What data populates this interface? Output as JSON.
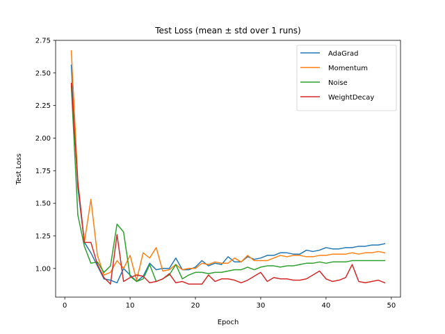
{
  "chart_data": {
    "type": "line",
    "title": "Test Loss (mean ± std over 1 runs)",
    "xlabel": "Epoch",
    "ylabel": "Test Loss",
    "xlim": [
      -1.4,
      51.4
    ],
    "ylim": [
      0.78,
      2.75
    ],
    "xticks": [
      0,
      10,
      20,
      30,
      40,
      50
    ],
    "yticks": [
      1.0,
      1.25,
      1.5,
      1.75,
      2.0,
      2.25,
      2.5,
      2.75
    ],
    "legend_position": "top-right",
    "grid": false,
    "x": [
      1,
      2,
      3,
      4,
      5,
      6,
      7,
      8,
      9,
      10,
      11,
      12,
      13,
      14,
      15,
      16,
      17,
      18,
      19,
      20,
      21,
      22,
      23,
      24,
      25,
      26,
      27,
      28,
      29,
      30,
      31,
      32,
      33,
      34,
      35,
      36,
      37,
      38,
      39,
      40,
      41,
      42,
      43,
      44,
      45,
      46,
      47,
      48,
      49
    ],
    "series": [
      {
        "name": "AdaGrad",
        "color": "#1f77b4",
        "values": [
          2.56,
          1.62,
          1.2,
          1.12,
          1.02,
          0.92,
          0.91,
          0.89,
          1.0,
          0.95,
          0.9,
          0.94,
          1.04,
          0.99,
          1.0,
          1.0,
          1.08,
          0.99,
          0.99,
          1.01,
          1.06,
          1.02,
          1.04,
          1.03,
          1.09,
          1.05,
          1.05,
          1.09,
          1.07,
          1.08,
          1.1,
          1.1,
          1.12,
          1.12,
          1.11,
          1.11,
          1.14,
          1.13,
          1.14,
          1.16,
          1.15,
          1.15,
          1.16,
          1.16,
          1.17,
          1.17,
          1.18,
          1.18,
          1.19
        ]
      },
      {
        "name": "Momentum",
        "color": "#ff7f0e",
        "values": [
          2.67,
          1.67,
          1.2,
          1.53,
          1.1,
          0.95,
          0.97,
          1.06,
          1.0,
          1.1,
          0.91,
          1.12,
          1.08,
          1.16,
          0.98,
          0.99,
          1.03,
          0.99,
          1.0,
          1.0,
          1.04,
          1.03,
          1.05,
          1.04,
          1.04,
          1.08,
          1.05,
          1.1,
          1.06,
          1.06,
          1.06,
          1.08,
          1.1,
          1.09,
          1.1,
          1.1,
          1.09,
          1.09,
          1.1,
          1.1,
          1.11,
          1.11,
          1.11,
          1.12,
          1.11,
          1.12,
          1.12,
          1.13,
          1.12
        ]
      },
      {
        "name": "Noise",
        "color": "#2ca02c",
        "values": [
          2.4,
          1.41,
          1.17,
          1.04,
          1.05,
          0.97,
          1.02,
          1.34,
          1.28,
          0.94,
          0.9,
          0.92,
          1.03,
          0.9,
          0.92,
          0.95,
          1.03,
          0.92,
          0.95,
          0.97,
          0.97,
          0.96,
          0.97,
          0.97,
          0.98,
          0.99,
          0.99,
          1.01,
          0.99,
          1.01,
          1.02,
          1.02,
          1.01,
          1.02,
          1.02,
          1.03,
          1.04,
          1.04,
          1.05,
          1.04,
          1.05,
          1.05,
          1.05,
          1.06,
          1.06,
          1.06,
          1.06,
          1.06,
          1.06
        ]
      },
      {
        "name": "WeightDecay",
        "color": "#d62728",
        "values": [
          2.42,
          1.66,
          1.2,
          1.2,
          1.03,
          0.93,
          0.88,
          1.26,
          0.9,
          0.93,
          0.95,
          0.94,
          0.89,
          0.9,
          0.92,
          0.96,
          0.89,
          0.9,
          0.88,
          0.88,
          0.88,
          0.95,
          0.9,
          0.92,
          0.92,
          0.91,
          0.89,
          0.91,
          0.94,
          0.97,
          0.9,
          0.93,
          0.92,
          0.92,
          0.91,
          0.91,
          0.92,
          0.95,
          0.98,
          0.92,
          0.9,
          0.91,
          0.93,
          1.03,
          0.9,
          0.89,
          0.9,
          0.91,
          0.89
        ]
      }
    ]
  }
}
